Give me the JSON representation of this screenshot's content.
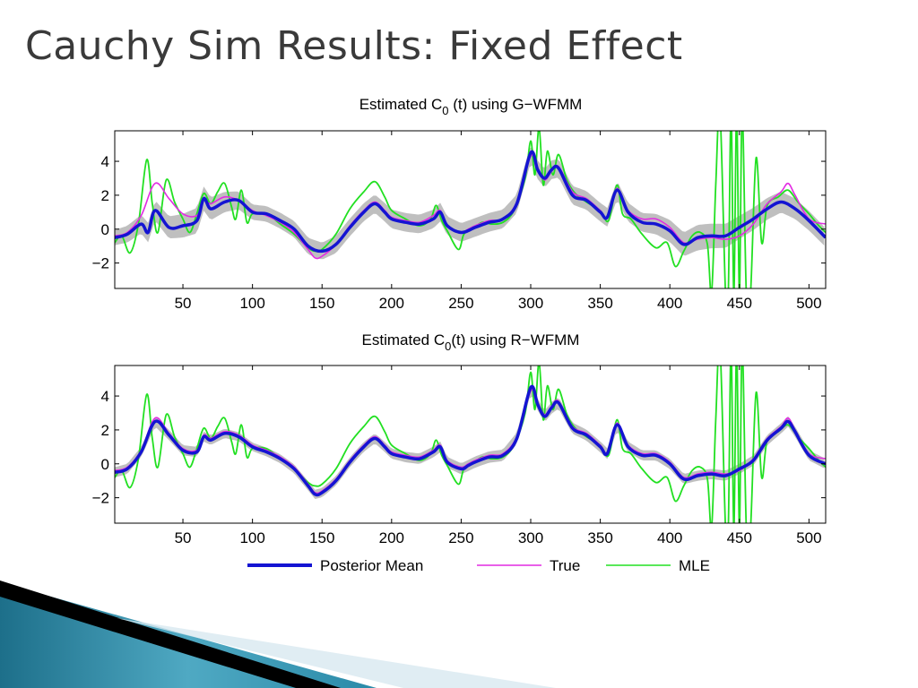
{
  "slide": {
    "title": "Cauchy Sim Results: Fixed Effect"
  },
  "colors": {
    "posterior_mean": "#1414d2",
    "true": "#e22ce2",
    "mle": "#22e022",
    "band": "#b4b4b4"
  },
  "legend": {
    "entries": [
      "Posterior Mean",
      "True",
      "MLE"
    ],
    "placement": "bottom-center"
  },
  "chart_data": [
    {
      "type": "line",
      "title_main": "Estimated C",
      "title_sub": "0",
      "title_rest": " (t) using G−WFMM",
      "xlabel": "",
      "ylabel": "",
      "xlim": [
        1,
        512
      ],
      "ylim": [
        -3.5,
        5.8
      ],
      "xticks": [
        50,
        100,
        150,
        200,
        250,
        300,
        350,
        400,
        450,
        500
      ],
      "yticks": [
        -2,
        0,
        2,
        4
      ],
      "ytick_labels": [
        "−2",
        "0",
        "2",
        "4"
      ],
      "band_halfwidth": [
        [
          1,
          0.45
        ],
        [
          60,
          0.75
        ],
        [
          100,
          0.45
        ],
        [
          200,
          0.55
        ],
        [
          300,
          0.55
        ],
        [
          380,
          0.55
        ],
        [
          420,
          0.75
        ],
        [
          512,
          0.55
        ]
      ],
      "series": [
        {
          "name": "True",
          "x": [
            1,
            10,
            20,
            30,
            40,
            50,
            60,
            65,
            70,
            80,
            90,
            100,
            110,
            120,
            130,
            140,
            145,
            150,
            160,
            170,
            180,
            188,
            195,
            200,
            210,
            220,
            230,
            235,
            240,
            250,
            255,
            260,
            270,
            280,
            290,
            300,
            305,
            310,
            315,
            320,
            330,
            340,
            350,
            355,
            362,
            370,
            380,
            390,
            400,
            410,
            420,
            430,
            440,
            450,
            460,
            470,
            480,
            485,
            490,
            500,
            512
          ],
          "y": [
            -0.4,
            -0.2,
            0.8,
            2.7,
            1.8,
            0.9,
            0.8,
            1.7,
            1.5,
            1.9,
            1.7,
            1.1,
            0.8,
            0.4,
            -0.2,
            -1.2,
            -1.7,
            -1.6,
            -0.9,
            0.2,
            1.1,
            1.6,
            1.1,
            0.7,
            0.5,
            0.4,
            0.8,
            1.1,
            0.2,
            -0.2,
            0.0,
            0.2,
            0.5,
            0.6,
            1.6,
            4.3,
            3.6,
            2.9,
            3.4,
            3.7,
            2.2,
            1.8,
            1.1,
            0.7,
            2.4,
            1.1,
            0.6,
            0.6,
            0.1,
            -0.8,
            -0.6,
            -0.5,
            -0.6,
            -0.4,
            0.3,
            1.5,
            2.2,
            2.7,
            2.0,
            0.6,
            0.3
          ]
        },
        {
          "name": "Posterior Mean",
          "x": [
            1,
            10,
            20,
            25,
            30,
            40,
            50,
            60,
            65,
            70,
            80,
            90,
            100,
            110,
            120,
            130,
            140,
            150,
            160,
            170,
            180,
            188,
            195,
            200,
            210,
            220,
            230,
            235,
            240,
            250,
            260,
            270,
            280,
            290,
            300,
            305,
            310,
            315,
            320,
            330,
            340,
            350,
            355,
            362,
            370,
            380,
            390,
            400,
            410,
            420,
            430,
            440,
            450,
            460,
            470,
            480,
            490,
            500,
            512
          ],
          "y": [
            -0.5,
            -0.3,
            0.3,
            -0.2,
            1.1,
            0.1,
            0.2,
            0.5,
            1.8,
            1.2,
            1.6,
            1.7,
            1.0,
            0.9,
            0.5,
            0.0,
            -1.0,
            -1.3,
            -0.9,
            0.1,
            1.0,
            1.5,
            1.0,
            0.6,
            0.4,
            0.3,
            0.6,
            1.0,
            0.2,
            -0.2,
            0.1,
            0.4,
            0.6,
            1.5,
            4.5,
            3.5,
            3.0,
            3.5,
            3.6,
            2.0,
            1.7,
            1.0,
            0.7,
            2.3,
            1.0,
            0.4,
            0.3,
            -0.1,
            -0.9,
            -0.5,
            -0.4,
            -0.4,
            0.1,
            0.6,
            1.2,
            1.6,
            1.2,
            0.5,
            -0.5
          ]
        },
        {
          "name": "MLE",
          "x": [
            1,
            6,
            12,
            18,
            24,
            28,
            32,
            38,
            44,
            50,
            55,
            60,
            65,
            70,
            75,
            80,
            85,
            88,
            92,
            96,
            100,
            110,
            120,
            130,
            140,
            145,
            150,
            160,
            170,
            180,
            188,
            195,
            200,
            210,
            220,
            228,
            232,
            236,
            240,
            248,
            252,
            258,
            265,
            272,
            280,
            288,
            296,
            300,
            303,
            306,
            309,
            312,
            316,
            320,
            326,
            332,
            340,
            350,
            356,
            362,
            366,
            372,
            380,
            390,
            398,
            404,
            410,
            416,
            422,
            427,
            430,
            433,
            436,
            440,
            442,
            444,
            446,
            448,
            450,
            452,
            455,
            458,
            462,
            466,
            470,
            478,
            485,
            492,
            500,
            506,
            512
          ],
          "y": [
            -0.8,
            -0.4,
            -1.4,
            0.3,
            4.1,
            1.5,
            -0.2,
            2.9,
            1.6,
            0.6,
            -0.2,
            0.9,
            2.1,
            1.5,
            2.2,
            2.7,
            1.3,
            0.6,
            2.3,
            0.4,
            0.9,
            0.9,
            0.3,
            -0.3,
            -1.1,
            -1.3,
            -1.2,
            -0.3,
            1.2,
            2.2,
            2.8,
            1.9,
            1.1,
            0.6,
            0.2,
            0.6,
            1.4,
            0.5,
            -0.1,
            -1.2,
            -0.3,
            0.0,
            0.4,
            0.3,
            0.4,
            1.1,
            3.0,
            5.2,
            3.2,
            6.0,
            2.6,
            4.6,
            3.2,
            4.4,
            2.9,
            2.1,
            1.6,
            1.1,
            0.5,
            2.6,
            0.9,
            0.6,
            -0.3,
            -1.1,
            -0.8,
            -2.2,
            -1.3,
            -0.4,
            -0.2,
            -0.9,
            -3.8,
            2.6,
            7.0,
            -3.8,
            -3.8,
            7.0,
            -3.8,
            7.0,
            -3.8,
            7.0,
            -3.8,
            -3.8,
            4.2,
            -0.8,
            1.4,
            1.9,
            2.3,
            1.6,
            0.9,
            0.3,
            -0.2
          ]
        }
      ]
    },
    {
      "type": "line",
      "title_main": "Estimated C",
      "title_sub": "0",
      "title_rest": "(t) using R−WFMM",
      "xlabel": "",
      "ylabel": "",
      "xlim": [
        1,
        512
      ],
      "ylim": [
        -3.5,
        5.8
      ],
      "xticks": [
        50,
        100,
        150,
        200,
        250,
        300,
        350,
        400,
        450,
        500
      ],
      "yticks": [
        -2,
        0,
        2,
        4
      ],
      "ytick_labels": [
        "−2",
        "0",
        "2",
        "4"
      ],
      "band_halfwidth": [
        [
          1,
          0.3
        ],
        [
          60,
          0.3
        ],
        [
          100,
          0.25
        ],
        [
          200,
          0.3
        ],
        [
          300,
          0.35
        ],
        [
          380,
          0.3
        ],
        [
          420,
          0.3
        ],
        [
          512,
          0.3
        ]
      ],
      "series": [
        {
          "name": "True",
          "x": [
            1,
            10,
            20,
            30,
            40,
            50,
            60,
            65,
            70,
            80,
            90,
            100,
            110,
            120,
            130,
            140,
            145,
            150,
            160,
            170,
            180,
            188,
            195,
            200,
            210,
            220,
            230,
            235,
            240,
            250,
            255,
            260,
            270,
            280,
            290,
            300,
            305,
            310,
            315,
            320,
            330,
            340,
            350,
            355,
            362,
            370,
            380,
            390,
            400,
            410,
            420,
            430,
            440,
            450,
            460,
            470,
            480,
            485,
            490,
            500,
            512
          ],
          "y": [
            -0.4,
            -0.2,
            0.8,
            2.7,
            1.8,
            0.9,
            0.8,
            1.7,
            1.5,
            1.9,
            1.7,
            1.1,
            0.8,
            0.4,
            -0.2,
            -1.2,
            -1.7,
            -1.6,
            -0.9,
            0.2,
            1.1,
            1.6,
            1.1,
            0.7,
            0.5,
            0.4,
            0.8,
            1.1,
            0.2,
            -0.2,
            0.0,
            0.2,
            0.5,
            0.6,
            1.6,
            4.3,
            3.6,
            2.9,
            3.4,
            3.7,
            2.2,
            1.8,
            1.1,
            0.7,
            2.4,
            1.1,
            0.6,
            0.6,
            0.1,
            -0.8,
            -0.6,
            -0.5,
            -0.6,
            -0.4,
            0.3,
            1.5,
            2.2,
            2.7,
            2.0,
            0.6,
            0.3
          ]
        },
        {
          "name": "Posterior Mean",
          "x": [
            1,
            10,
            20,
            30,
            40,
            50,
            60,
            65,
            70,
            80,
            90,
            100,
            110,
            120,
            130,
            140,
            145,
            150,
            160,
            170,
            180,
            188,
            195,
            200,
            210,
            220,
            230,
            235,
            240,
            250,
            255,
            260,
            270,
            280,
            290,
            300,
            305,
            310,
            315,
            320,
            330,
            340,
            350,
            355,
            362,
            370,
            380,
            390,
            400,
            410,
            420,
            430,
            440,
            450,
            460,
            470,
            480,
            485,
            490,
            500,
            512
          ],
          "y": [
            -0.5,
            -0.3,
            0.7,
            2.5,
            1.7,
            0.8,
            0.7,
            1.6,
            1.4,
            1.8,
            1.6,
            1.0,
            0.7,
            0.3,
            -0.3,
            -1.3,
            -1.8,
            -1.7,
            -1.0,
            0.1,
            1.0,
            1.5,
            1.0,
            0.6,
            0.4,
            0.3,
            0.7,
            1.0,
            0.1,
            -0.3,
            -0.1,
            0.1,
            0.4,
            0.5,
            1.5,
            4.5,
            3.5,
            2.8,
            3.3,
            3.6,
            2.1,
            1.7,
            1.0,
            0.6,
            2.3,
            1.0,
            0.5,
            0.5,
            0.0,
            -0.9,
            -0.7,
            -0.6,
            -0.7,
            -0.3,
            0.2,
            1.4,
            2.1,
            2.5,
            1.9,
            0.5,
            0.0
          ]
        },
        {
          "name": "MLE",
          "x": [
            1,
            6,
            12,
            18,
            24,
            28,
            32,
            38,
            44,
            50,
            55,
            60,
            65,
            70,
            75,
            80,
            85,
            88,
            92,
            96,
            100,
            110,
            120,
            130,
            140,
            145,
            150,
            160,
            170,
            180,
            188,
            195,
            200,
            210,
            220,
            228,
            232,
            236,
            240,
            248,
            252,
            258,
            265,
            272,
            280,
            288,
            296,
            300,
            303,
            306,
            309,
            312,
            316,
            320,
            326,
            332,
            340,
            350,
            356,
            362,
            366,
            372,
            380,
            390,
            398,
            404,
            410,
            416,
            422,
            427,
            430,
            433,
            436,
            440,
            442,
            444,
            446,
            448,
            450,
            452,
            455,
            458,
            462,
            466,
            470,
            478,
            485,
            492,
            500,
            506,
            512
          ],
          "y": [
            -0.8,
            -0.4,
            -1.4,
            0.3,
            4.1,
            1.5,
            -0.2,
            2.9,
            1.6,
            0.6,
            -0.2,
            0.9,
            2.1,
            1.5,
            2.2,
            2.7,
            1.3,
            0.6,
            2.3,
            0.4,
            0.9,
            0.9,
            0.3,
            -0.3,
            -1.1,
            -1.3,
            -1.2,
            -0.3,
            1.2,
            2.2,
            2.8,
            1.9,
            1.1,
            0.6,
            0.2,
            0.6,
            1.4,
            0.5,
            -0.1,
            -1.2,
            -0.3,
            0.0,
            0.4,
            0.3,
            0.4,
            1.1,
            3.0,
            5.4,
            3.2,
            6.0,
            2.6,
            4.6,
            3.2,
            4.4,
            2.9,
            2.1,
            1.6,
            1.1,
            0.5,
            2.6,
            0.9,
            0.6,
            -0.3,
            -1.1,
            -0.8,
            -2.2,
            -1.3,
            -0.4,
            -0.2,
            -0.9,
            -3.8,
            2.6,
            7.0,
            -3.8,
            -3.8,
            7.0,
            -3.8,
            7.0,
            -3.8,
            7.0,
            -3.8,
            -3.8,
            4.2,
            -0.8,
            1.4,
            1.9,
            2.3,
            1.6,
            0.9,
            0.3,
            -0.2
          ]
        }
      ]
    }
  ]
}
